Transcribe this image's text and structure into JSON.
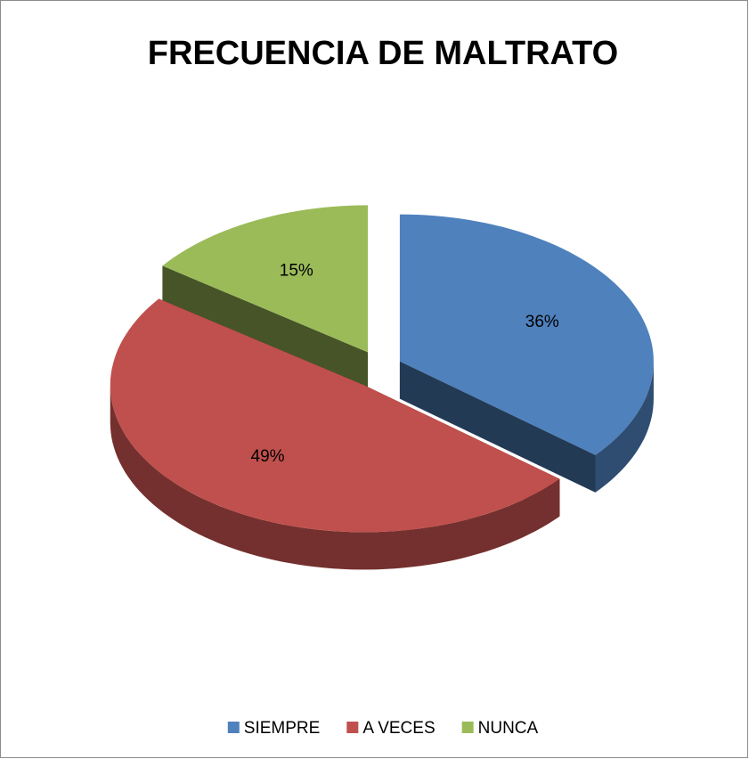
{
  "chart_data": {
    "type": "pie",
    "title": "FRECUENCIA DE MALTRATO",
    "categories": [
      "SIEMPRE",
      "A VECES",
      "NUNCA"
    ],
    "values": [
      36,
      49,
      15
    ],
    "value_labels": [
      "36%",
      "49%",
      "15%"
    ],
    "colors": [
      "#4f81bd",
      "#c0504d",
      "#9bbb59"
    ],
    "legend": "bottom"
  }
}
